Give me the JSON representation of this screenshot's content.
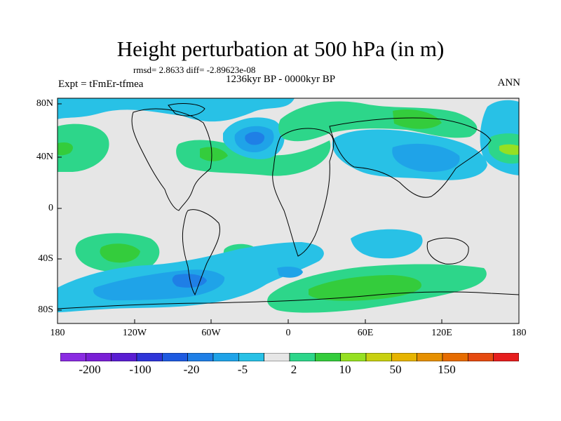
{
  "title": "Height perturbation at 500 hPa (in m)",
  "stats": "rmsd= 2.8633 diff= -2.89623e-08",
  "experiment": "Expt = tFmEr-tfmea",
  "period": "1236kyr BP - 0000kyr BP",
  "season": "ANN",
  "lat_ticks": [
    "80N",
    "40N",
    "0",
    "40S",
    "80S"
  ],
  "lon_ticks": [
    "180",
    "120W",
    "60W",
    "0",
    "60E",
    "120E",
    "180"
  ],
  "colorbar": {
    "colors": [
      "#8a2be2",
      "#7a1fd6",
      "#5a1ed2",
      "#2f35d8",
      "#1e5ae0",
      "#1f7fe6",
      "#1fa3e8",
      "#28c1e6",
      "#e6e6e6",
      "#2dd68a",
      "#34cc3c",
      "#96e022",
      "#c8d010",
      "#e6b400",
      "#e69000",
      "#e66c00",
      "#e64a10",
      "#e61e1e"
    ],
    "labels": [
      "-200",
      "-100",
      "-20",
      "-5",
      "2",
      "10",
      "50",
      "150"
    ]
  }
}
